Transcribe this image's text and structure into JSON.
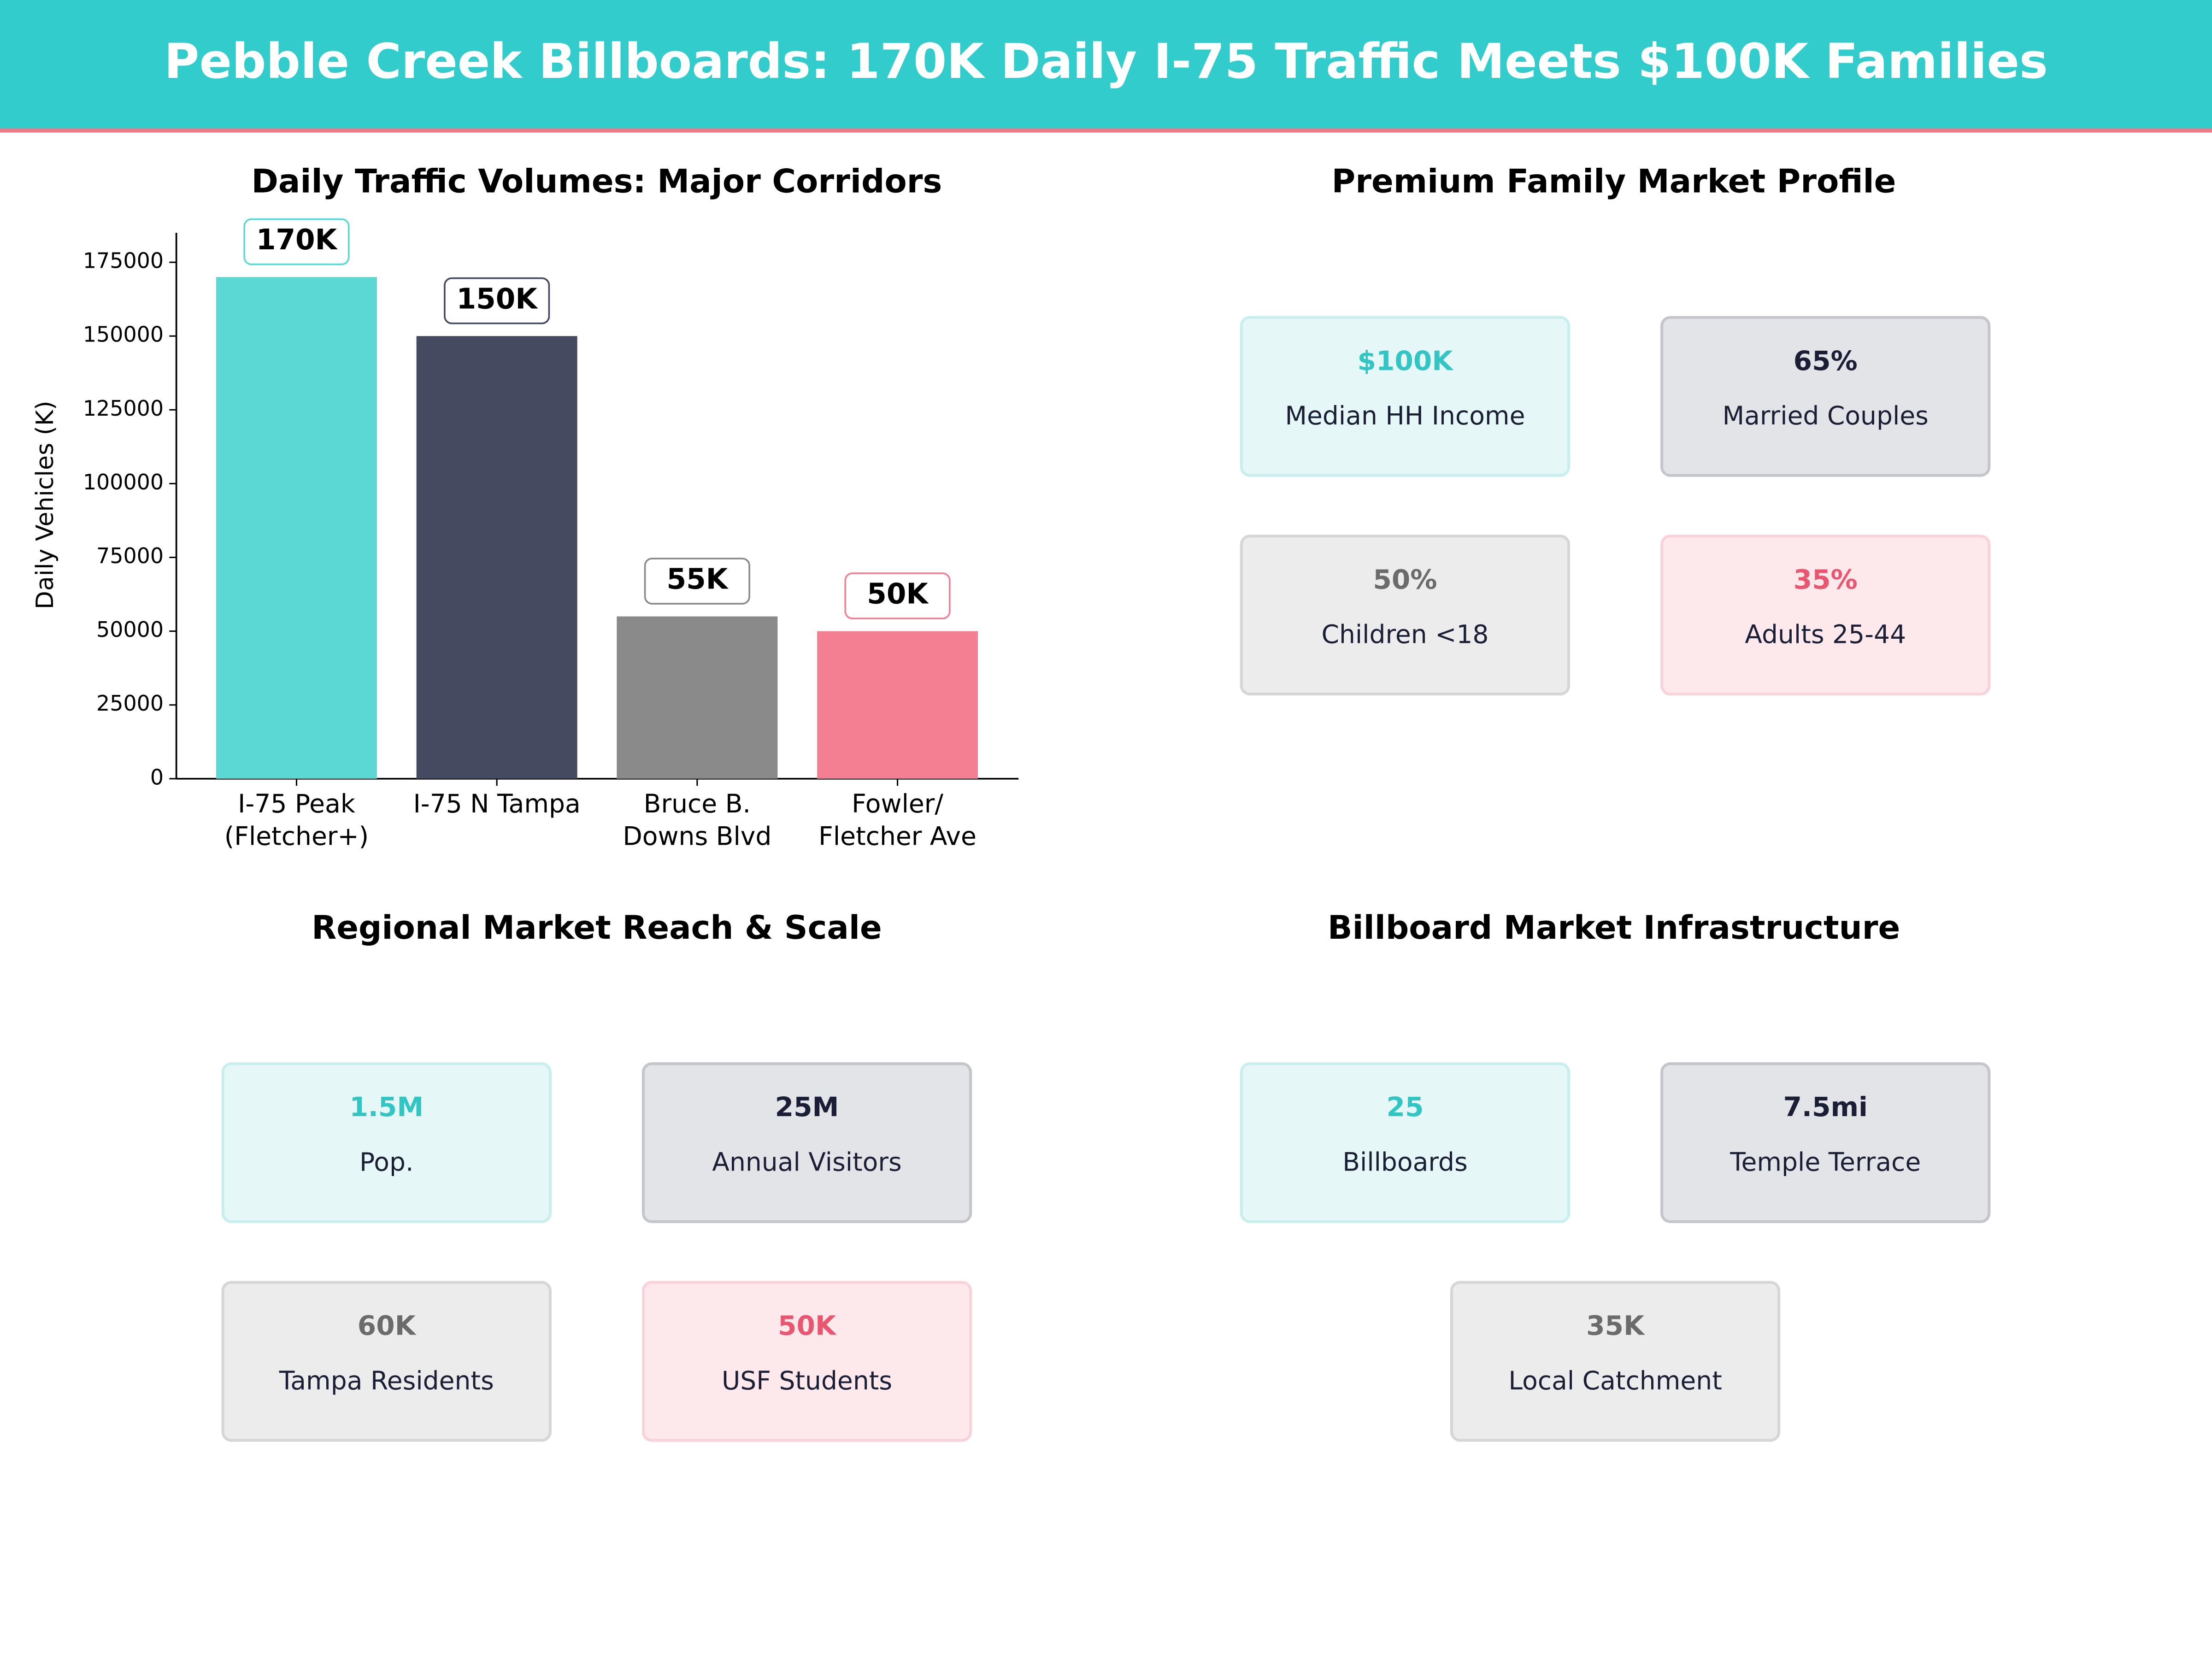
{
  "title": "Pebble Creek Billboards: 170K Daily I-75 Traffic Meets $100K Families",
  "chart_data": {
    "type": "bar",
    "title": "Daily Traffic Volumes: Major Corridors",
    "y_label": "Daily Vehicles (K)",
    "categories": [
      "I-75 Peak\n(Fletcher+)",
      "I-75 N Tampa",
      "Bruce B.\nDowns Blvd",
      "Fowler/\nFletcher Ave"
    ],
    "values": [
      170000,
      150000,
      55000,
      50000
    ],
    "value_labels": [
      "170K",
      "150K",
      "55K",
      "50K"
    ],
    "colors": [
      "#5cd8d4",
      "#464a60",
      "#8a8a8a",
      "#f47f93"
    ],
    "ylim": [
      0,
      185000
    ],
    "yticks": [
      0,
      25000,
      50000,
      75000,
      100000,
      125000,
      150000,
      175000
    ],
    "grid": false
  },
  "panels": [
    {
      "title": "Premium Family Market Profile",
      "cards": [
        {
          "value": "$100K",
          "label": "Median HH Income"
        },
        {
          "value": "65%",
          "label": "Married Couples"
        },
        {
          "value": "50%",
          "label": "Children <18"
        },
        {
          "value": "35%",
          "label": "Adults 25-44"
        }
      ]
    },
    {
      "title": "Regional Market Reach & Scale",
      "cards": [
        {
          "value": "1.5M",
          "label": "Pop."
        },
        {
          "value": "25M",
          "label": "Annual Visitors"
        },
        {
          "value": "60K",
          "label": "Tampa Residents"
        },
        {
          "value": "50K",
          "label": "USF Students"
        }
      ]
    },
    {
      "title": "Billboard Market Infrastructure",
      "cards": [
        {
          "value": "25",
          "label": "Billboards"
        },
        {
          "value": "7.5mi",
          "label": "Temple Terrace"
        },
        {
          "value": "35K",
          "label": "Local Catchment"
        }
      ]
    }
  ]
}
